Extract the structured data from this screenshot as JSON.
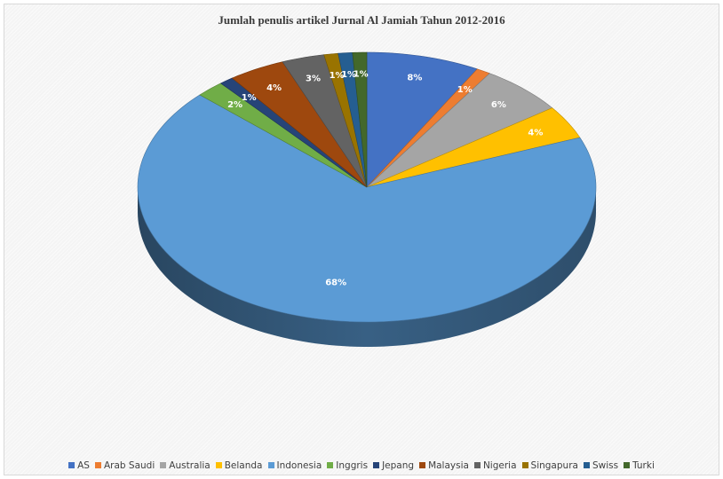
{
  "chart_data": {
    "type": "pie",
    "title": "Jumlah penulis artikel Jurnal Al Jamiah  Tahun  2012-2016",
    "categories": [
      "AS",
      "Arab Saudi",
      "Australia",
      "Belanda",
      "Indonesia",
      "Inggris",
      "Jepang",
      "Malaysia",
      "Nigeria",
      "Singapura",
      "Swiss",
      "Turki"
    ],
    "values": [
      8,
      1,
      6,
      4,
      68,
      2,
      1,
      4,
      3,
      1,
      1,
      1
    ],
    "labels": [
      "8%",
      "1%",
      "6%",
      "4%",
      "68%",
      "2%",
      "1%",
      "4%",
      "3%",
      "1%",
      "1%",
      "1%"
    ],
    "colors": [
      "#4472C4",
      "#ED7D31",
      "#A5A5A5",
      "#FFC000",
      "#5B9BD5",
      "#70AD47",
      "#264478",
      "#9E480E",
      "#636363",
      "#997300",
      "#255E91",
      "#43682B"
    ],
    "legend_position": "bottom",
    "style": "3d"
  }
}
